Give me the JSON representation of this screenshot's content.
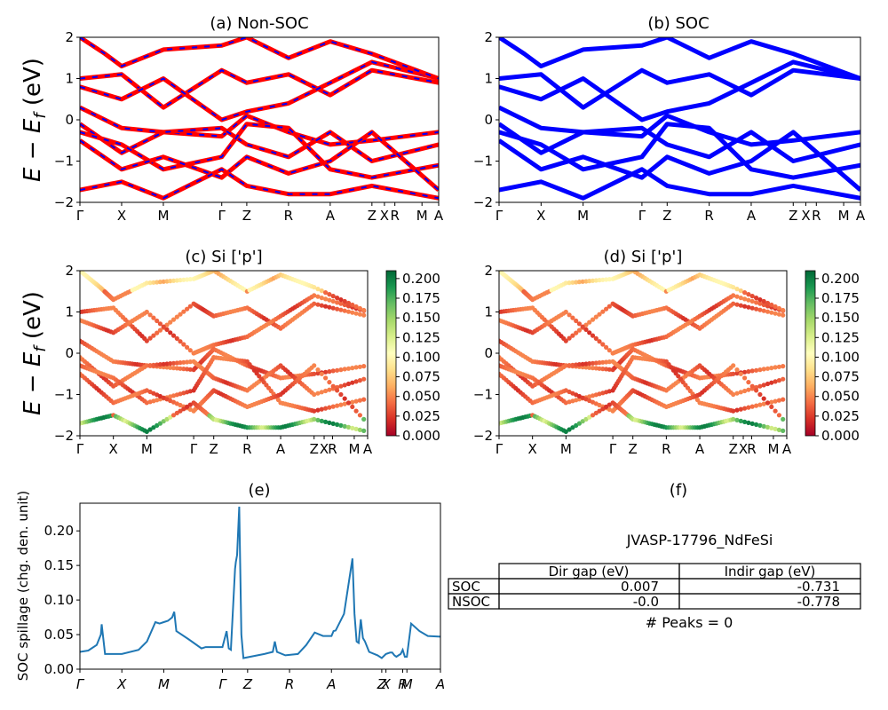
{
  "shared": {
    "band_ylim": [
      -2,
      2
    ],
    "band_yticks": [
      "2",
      "1",
      "0",
      "−1",
      "−2"
    ],
    "band_xticks": [
      "Γ",
      "X",
      "M",
      "Γ",
      "Z",
      "R",
      "A",
      "Z",
      "X",
      "R",
      "M",
      "A"
    ],
    "band_xtick_pos": [
      0,
      1,
      2,
      3.4,
      4,
      5,
      6,
      7,
      7.3,
      7.55,
      8.2,
      8.6
    ],
    "band_xmax": 8.6,
    "band_ylabel": "E − E_f (eV)",
    "colorbar_ticks": [
      "0.200",
      "0.175",
      "0.150",
      "0.125",
      "0.100",
      "0.075",
      "0.050",
      "0.025",
      "0.000"
    ],
    "colorbar_range": [
      0.0,
      0.21
    ],
    "colors": {
      "nonsoc_main": "#ff0000",
      "nonsoc_dash": "#0000ff",
      "soc": "#0000ff",
      "spillage_line": "#1f77b4"
    }
  },
  "chart_data": [
    {
      "id": "a",
      "type": "line",
      "title": "(a) Non-SOC",
      "ylabel": "E − E_f (eV)",
      "ylim": [
        -2,
        2
      ],
      "bands_approx": [
        [
          [
            0,
            1.0
          ],
          [
            1,
            1.1
          ],
          [
            2,
            0.3
          ],
          [
            3.4,
            1.2
          ],
          [
            4,
            0.9
          ],
          [
            5,
            1.1
          ],
          [
            6,
            0.6
          ],
          [
            7,
            1.2
          ],
          [
            8.6,
            0.9
          ]
        ],
        [
          [
            0,
            0.8
          ],
          [
            1,
            0.5
          ],
          [
            2,
            1.0
          ],
          [
            3.4,
            0.0
          ],
          [
            4,
            0.2
          ],
          [
            5,
            0.4
          ],
          [
            6,
            0.9
          ],
          [
            7,
            1.4
          ],
          [
            8.6,
            1.0
          ]
        ],
        [
          [
            0,
            0.3
          ],
          [
            1,
            -0.2
          ],
          [
            2,
            -0.3
          ],
          [
            3.4,
            -0.4
          ],
          [
            4,
            0.1
          ],
          [
            5,
            -0.3
          ],
          [
            6,
            -0.6
          ],
          [
            7,
            -0.5
          ],
          [
            8.6,
            -0.3
          ]
        ],
        [
          [
            0,
            -0.1
          ],
          [
            1,
            -0.8
          ],
          [
            2,
            -0.3
          ],
          [
            3.4,
            -0.2
          ],
          [
            4,
            -0.6
          ],
          [
            5,
            -0.9
          ],
          [
            6,
            -0.3
          ],
          [
            7,
            -1.0
          ],
          [
            8.6,
            -0.6
          ]
        ],
        [
          [
            0,
            -0.3
          ],
          [
            1,
            -0.6
          ],
          [
            2,
            -1.2
          ],
          [
            3.4,
            -0.9
          ],
          [
            4,
            -0.1
          ],
          [
            5,
            -0.2
          ],
          [
            6,
            -1.2
          ],
          [
            7,
            -1.4
          ],
          [
            8.6,
            -1.1
          ]
        ],
        [
          [
            0,
            -0.5
          ],
          [
            1,
            -1.2
          ],
          [
            2,
            -0.9
          ],
          [
            3.4,
            -1.4
          ],
          [
            4,
            -0.9
          ],
          [
            5,
            -1.3
          ],
          [
            6,
            -1.0
          ],
          [
            7,
            -0.3
          ],
          [
            8.6,
            -1.7
          ]
        ],
        [
          [
            0,
            -1.7
          ],
          [
            1,
            -1.5
          ],
          [
            2,
            -1.9
          ],
          [
            3.4,
            -1.2
          ],
          [
            4,
            -1.6
          ],
          [
            5,
            -1.8
          ],
          [
            6,
            -1.8
          ],
          [
            7,
            -1.6
          ],
          [
            8.6,
            -1.9
          ]
        ],
        [
          [
            0,
            2.0
          ],
          [
            0.6,
            1.6
          ],
          [
            1,
            1.3
          ],
          [
            2,
            1.7
          ],
          [
            3.4,
            1.8
          ],
          [
            4,
            2.0
          ],
          [
            5,
            1.5
          ],
          [
            6,
            1.9
          ],
          [
            7,
            1.6
          ],
          [
            8.6,
            1.0
          ]
        ]
      ]
    },
    {
      "id": "b",
      "type": "line",
      "title": "(b) SOC",
      "ylim": [
        -2,
        2
      ],
      "bands_approx": [
        [
          [
            0,
            1.0
          ],
          [
            1,
            1.1
          ],
          [
            2,
            0.3
          ],
          [
            3.4,
            1.2
          ],
          [
            4,
            0.9
          ],
          [
            5,
            1.1
          ],
          [
            6,
            0.6
          ],
          [
            7,
            1.2
          ],
          [
            8.6,
            1.0
          ]
        ],
        [
          [
            0,
            0.8
          ],
          [
            1,
            0.5
          ],
          [
            2,
            1.0
          ],
          [
            3.4,
            0.0
          ],
          [
            4,
            0.2
          ],
          [
            5,
            0.4
          ],
          [
            6,
            0.9
          ],
          [
            7,
            1.4
          ],
          [
            8.6,
            1.0
          ]
        ],
        [
          [
            0,
            0.3
          ],
          [
            1,
            -0.2
          ],
          [
            2,
            -0.3
          ],
          [
            3.4,
            -0.4
          ],
          [
            4,
            0.1
          ],
          [
            5,
            -0.3
          ],
          [
            6,
            -0.6
          ],
          [
            7,
            -0.5
          ],
          [
            8.6,
            -0.3
          ]
        ],
        [
          [
            0,
            -0.1
          ],
          [
            1,
            -0.8
          ],
          [
            2,
            -0.3
          ],
          [
            3.4,
            -0.2
          ],
          [
            4,
            -0.6
          ],
          [
            5,
            -0.9
          ],
          [
            6,
            -0.3
          ],
          [
            7,
            -1.0
          ],
          [
            8.6,
            -0.6
          ]
        ],
        [
          [
            0,
            -0.3
          ],
          [
            1,
            -0.6
          ],
          [
            2,
            -1.2
          ],
          [
            3.4,
            -0.9
          ],
          [
            4,
            -0.1
          ],
          [
            5,
            -0.2
          ],
          [
            6,
            -1.2
          ],
          [
            7,
            -1.4
          ],
          [
            8.6,
            -1.1
          ]
        ],
        [
          [
            0,
            -0.5
          ],
          [
            1,
            -1.2
          ],
          [
            2,
            -0.9
          ],
          [
            3.4,
            -1.4
          ],
          [
            4,
            -0.9
          ],
          [
            5,
            -1.3
          ],
          [
            6,
            -1.0
          ],
          [
            7,
            -0.3
          ],
          [
            8.6,
            -1.7
          ]
        ],
        [
          [
            0,
            -1.7
          ],
          [
            1,
            -1.5
          ],
          [
            2,
            -1.9
          ],
          [
            3.4,
            -1.2
          ],
          [
            4,
            -1.6
          ],
          [
            5,
            -1.8
          ],
          [
            6,
            -1.8
          ],
          [
            7,
            -1.6
          ],
          [
            8.6,
            -1.9
          ]
        ],
        [
          [
            0,
            2.0
          ],
          [
            0.6,
            1.6
          ],
          [
            1,
            1.3
          ],
          [
            2,
            1.7
          ],
          [
            3.4,
            1.8
          ],
          [
            4,
            2.0
          ],
          [
            5,
            1.5
          ],
          [
            6,
            1.9
          ],
          [
            7,
            1.6
          ],
          [
            8.6,
            1.0
          ]
        ]
      ]
    },
    {
      "id": "c",
      "type": "scatter",
      "title": "(c)  Si ['p']",
      "ylabel": "E − E_f (eV)",
      "ylim": [
        -2,
        2
      ],
      "colormap": "RdYlGn",
      "colorbar_range": [
        0.0,
        0.21
      ]
    },
    {
      "id": "d",
      "type": "scatter",
      "title": "(d) Si ['p']",
      "ylim": [
        -2,
        2
      ],
      "colormap": "RdYlGn",
      "colorbar_range": [
        0.0,
        0.21
      ]
    },
    {
      "id": "e",
      "type": "line",
      "title": "(e)",
      "ylabel": "SOC spillage (chg. den. unit)",
      "ylim": [
        0.0,
        0.24
      ],
      "yticks": [
        "0.00",
        "0.05",
        "0.10",
        "0.15",
        "0.20"
      ],
      "xticks": [
        "Γ",
        "X",
        "M",
        "Γ",
        "Z",
        "R",
        "A",
        "Z",
        "X",
        "R",
        "M",
        "A"
      ],
      "xtick_pos": [
        0,
        1,
        2,
        3.4,
        4,
        5,
        6,
        7.2,
        7.3,
        7.7,
        7.8,
        8.6
      ],
      "xmax": 8.6,
      "series": [
        {
          "x": [
            0,
            0.2,
            0.4,
            0.5,
            0.52,
            0.6,
            1,
            1.4,
            1.6,
            1.8,
            1.9,
            2.0,
            2.1,
            2.2,
            2.25,
            2.3,
            2.6,
            2.9,
            3.0,
            3.4,
            3.5,
            3.55,
            3.6,
            3.7,
            3.72,
            3.75,
            3.8,
            3.85,
            3.9,
            4.4,
            4.6,
            4.65,
            4.7,
            4.9,
            5.2,
            5.4,
            5.6,
            5.8,
            6.0,
            6.05,
            6.1,
            6.3,
            6.5,
            6.55,
            6.6,
            6.65,
            6.7,
            6.75,
            6.8,
            6.9,
            7.1,
            7.2,
            7.3,
            7.4,
            7.45,
            7.5,
            7.55,
            7.6,
            7.65,
            7.7,
            7.75,
            7.8,
            7.9,
            8.1,
            8.3,
            8.6
          ],
          "y": [
            0.025,
            0.027,
            0.035,
            0.05,
            0.065,
            0.022,
            0.022,
            0.028,
            0.04,
            0.068,
            0.066,
            0.068,
            0.07,
            0.075,
            0.083,
            0.055,
            0.043,
            0.03,
            0.032,
            0.032,
            0.055,
            0.03,
            0.028,
            0.145,
            0.155,
            0.165,
            0.235,
            0.05,
            0.016,
            0.022,
            0.025,
            0.04,
            0.025,
            0.02,
            0.022,
            0.035,
            0.053,
            0.048,
            0.048,
            0.055,
            0.056,
            0.08,
            0.16,
            0.08,
            0.04,
            0.038,
            0.072,
            0.045,
            0.04,
            0.025,
            0.02,
            0.016,
            0.022,
            0.024,
            0.024,
            0.02,
            0.018,
            0.02,
            0.022,
            0.028,
            0.018,
            0.018,
            0.066,
            0.055,
            0.048,
            0.047
          ]
        }
      ]
    },
    {
      "id": "f",
      "type": "table",
      "title": "(f)",
      "subtitle": "JVASP-17796_NdFeSi",
      "columns": [
        "",
        "Dir gap (eV)",
        "Indir gap (eV)"
      ],
      "rows": [
        [
          "SOC",
          "0.007",
          "-0.731"
        ],
        [
          "NSOC",
          "-0.0",
          "-0.778"
        ]
      ],
      "footer": "# Peaks = 0"
    }
  ]
}
